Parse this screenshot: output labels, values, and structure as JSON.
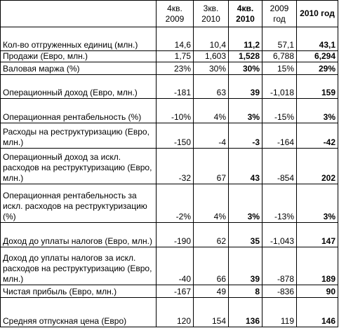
{
  "table": {
    "header": [
      "",
      "4кв. 2009",
      "3кв. 2010",
      "4кв. 2010",
      "2009 год",
      "2010 год"
    ],
    "rows": [
      [
        "Кол-во отгруженных единиц (млн.)",
        "14,6",
        "10,4",
        "11,2",
        "57,1",
        "43,1"
      ],
      [
        "Продажи (Евро, млн.)",
        "1,75",
        "1,603",
        "1,528",
        "6,788",
        "6,294"
      ],
      [
        "Валовая маржа (%)",
        "23%",
        "30%",
        "30%",
        "15%",
        "29%"
      ],
      [
        "Операционный доход (Евро, млн.)",
        "-181",
        "63",
        "39",
        "-1,018",
        "159"
      ],
      [
        "Операционная рентабельность (%)",
        "-10%",
        "4%",
        "3%",
        "-15%",
        "3%"
      ],
      [
        "Расходы на реструктуризацию (Евро, млн.)",
        "-150",
        "-4",
        "-3",
        "-164",
        "-42"
      ],
      [
        "Операционный доход за искл. расходов на реструктуризацию (Евро, млн.)",
        "-32",
        "67",
        "43",
        "-854",
        "202"
      ],
      [
        "Операционная рентабельность за искл. расходов на реструктуризацию (%)",
        "-2%",
        "4%",
        "3%",
        "-13%",
        "3%"
      ],
      [
        "Доход до уплаты налогов (Евро, млн.)",
        "-190",
        "62",
        "35",
        "-1,043",
        "147"
      ],
      [
        "Доход до уплаты налогов за искл. расходов на реструктуризацию (Евро, млн.)",
        "-40",
        "66",
        "39",
        "-878",
        "189"
      ],
      [
        "Чистая прибыль (Евро, млн.)",
        "-167",
        "49",
        "8",
        "-836",
        "90"
      ],
      [
        "Средняя отпускная цена (Евро)",
        "120",
        "154",
        "136",
        "119",
        "146"
      ]
    ]
  }
}
